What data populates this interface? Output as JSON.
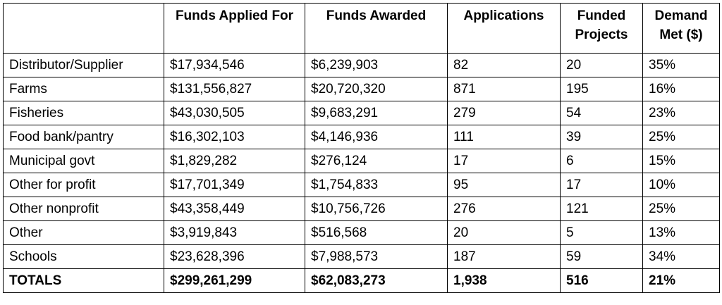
{
  "table": {
    "headers": [
      "",
      "Funds Applied For",
      "Funds Awarded",
      "Applications",
      "Funded Projects",
      "Demand Met ($)"
    ],
    "rows": [
      [
        "Distributor/Supplier",
        "$17,934,546",
        "$6,239,903",
        "82",
        "20",
        "35%"
      ],
      [
        "Farms",
        "$131,556,827",
        "$20,720,320",
        "871",
        "195",
        "16%"
      ],
      [
        "Fisheries",
        "$43,030,505",
        "$9,683,291",
        "279",
        "54",
        "23%"
      ],
      [
        "Food bank/pantry",
        "$16,302,103",
        "$4,146,936",
        "111",
        "39",
        "25%"
      ],
      [
        "Municipal govt",
        "$1,829,282",
        "$276,124",
        "17",
        "6",
        "15%"
      ],
      [
        "Other for profit",
        "$17,701,349",
        "$1,754,833",
        "95",
        "17",
        "10%"
      ],
      [
        "Other nonprofit",
        "$43,358,449",
        "$10,756,726",
        "276",
        "121",
        "25%"
      ],
      [
        "Other",
        "$3,919,843",
        "$516,568",
        "20",
        "5",
        "13%"
      ],
      [
        "Schools",
        "$23,628,396",
        "$7,988,573",
        "187",
        "59",
        "34%"
      ]
    ],
    "totals": [
      "TOTALS",
      "$299,261,299",
      "$62,083,273",
      "1,938",
      "516",
      "21%"
    ]
  }
}
